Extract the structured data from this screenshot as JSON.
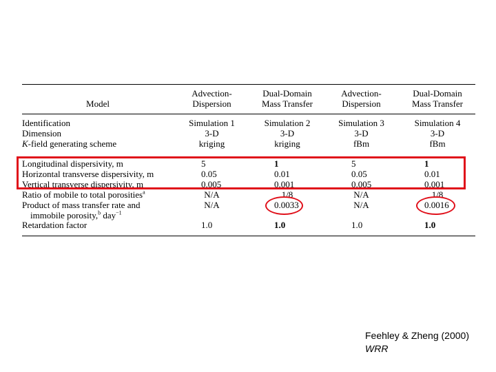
{
  "table": {
    "headers": [
      {
        "line1": "Model",
        "line2": ""
      },
      {
        "line1": "Advection-",
        "line2": "Dispersion"
      },
      {
        "line1": "Dual-Domain",
        "line2": "Mass Transfer"
      },
      {
        "line1": "Advection-",
        "line2": "Dispersion"
      },
      {
        "line1": "Dual-Domain",
        "line2": "Mass Transfer"
      }
    ],
    "group1": [
      {
        "label": "Identification",
        "values": [
          "Simulation 1",
          "Simulation 2",
          "Simulation 3",
          "Simulation 4"
        ]
      },
      {
        "label": "Dimension",
        "values": [
          "3-D",
          "3-D",
          "3-D",
          "3-D"
        ]
      },
      {
        "label": "K-field generating scheme",
        "values": [
          "kriging",
          "kriging",
          "fBm",
          "fBm"
        ]
      }
    ],
    "group2": [
      {
        "label": "Longitudinal dispersivity, m",
        "values": [
          "5",
          "1",
          "5",
          "1"
        ]
      },
      {
        "label": "Horizontal transverse dispersivity, m",
        "values": [
          "0.05",
          "0.01",
          "0.05",
          "0.01"
        ]
      },
      {
        "label": "Vertical transverse dispersivity, m",
        "values": [
          "0.005",
          "0.001",
          "0.005",
          "0.001"
        ]
      },
      {
        "label": "Ratio of mobile to total porosities",
        "sup": "a",
        "values": [
          "N/A",
          "1/8",
          "N/A",
          "1/8"
        ]
      },
      {
        "label": "Product of mass transfer rate and",
        "values": [
          "N/A",
          "0.0033",
          "N/A",
          "0.0016"
        ]
      },
      {
        "label": "immobile porosity,",
        "sup": "b",
        "unit": "day",
        "unitsup": "−1"
      },
      {
        "label": "Retardation factor",
        "values": [
          "1.0",
          "1.0",
          "1.0",
          "1.0"
        ]
      }
    ]
  },
  "highlight_color": "#e0101a",
  "citation": {
    "authors": "Feehley & Zheng (2000)",
    "journal": "WRR"
  }
}
